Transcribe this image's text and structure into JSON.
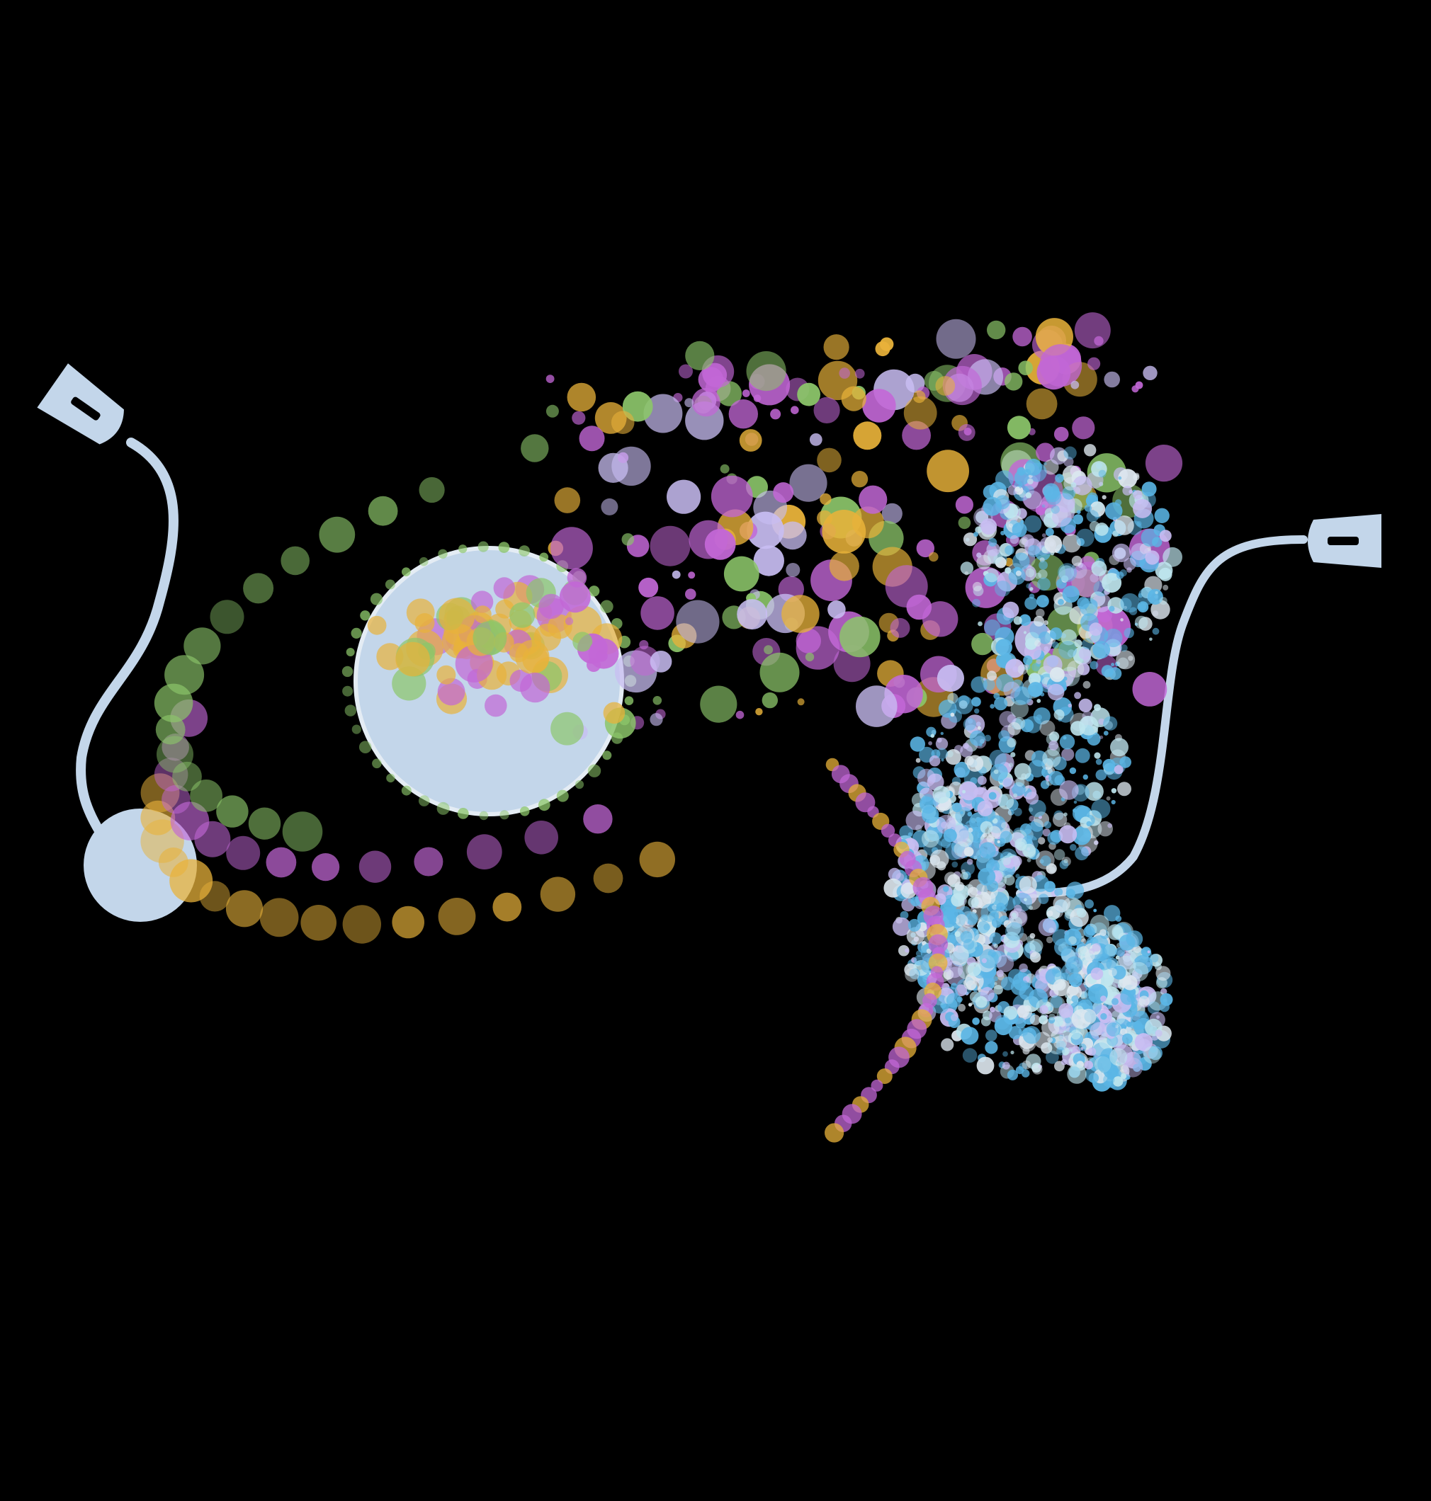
{
  "scene": {
    "background": "#000000",
    "description_tag": "illustration",
    "palette": {
      "cable": "#c3d6ea",
      "magenta": "#c267d6",
      "gold": "#e8b23a",
      "green": "#8cc66a",
      "lavender": "#c8bdf2",
      "blue": "#5bb6e6",
      "pale_blue": "#bfe6ef",
      "white_dots": "#dde7ef"
    },
    "icons": [
      "cable-plug-left-icon",
      "cable-plug-right-icon",
      "node-circle-icon",
      "planet-circle-icon",
      "fetus-silhouette-icon"
    ]
  }
}
